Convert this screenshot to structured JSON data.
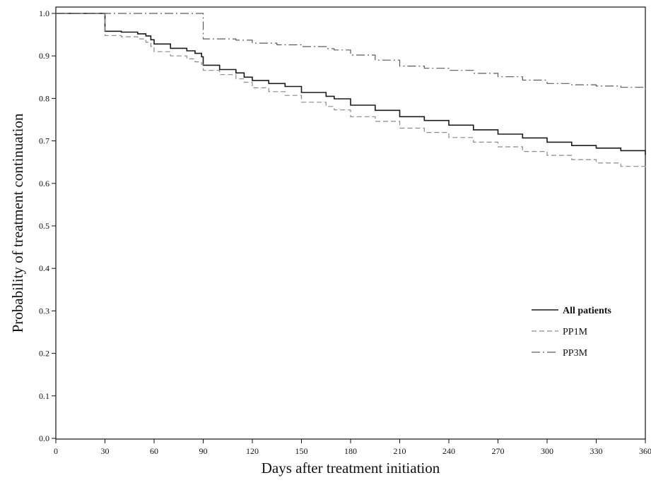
{
  "chart_data": {
    "type": "line",
    "step": true,
    "xlabel": "Days after treatment initiation",
    "ylabel": "Probability of treatment continuation",
    "xlim": [
      0,
      360
    ],
    "ylim": [
      0.0,
      1.0
    ],
    "xticks": [
      0,
      30,
      60,
      90,
      120,
      150,
      180,
      210,
      240,
      270,
      300,
      330,
      360
    ],
    "yticks": [
      0.0,
      0.1,
      0.2,
      0.3,
      0.4,
      0.5,
      0.6,
      0.7,
      0.8,
      0.9,
      1.0
    ],
    "ytick_labels": [
      "0.0",
      "0.1",
      "0.2",
      "0.3",
      "0.4",
      "0.5",
      "0.6",
      "0.7",
      "0.8",
      "0.9",
      "1.0"
    ],
    "grid": false,
    "legend_position": "bottom-right",
    "series": [
      {
        "name": "All patients",
        "style": "solid",
        "color": "#1a1a1a",
        "points": [
          [
            0,
            1.0
          ],
          [
            29,
            1.0
          ],
          [
            30,
            0.958
          ],
          [
            40,
            0.956
          ],
          [
            50,
            0.952
          ],
          [
            55,
            0.947
          ],
          [
            58,
            0.938
          ],
          [
            60,
            0.928
          ],
          [
            70,
            0.918
          ],
          [
            80,
            0.912
          ],
          [
            85,
            0.906
          ],
          [
            89,
            0.898
          ],
          [
            90,
            0.878
          ],
          [
            100,
            0.868
          ],
          [
            110,
            0.86
          ],
          [
            115,
            0.85
          ],
          [
            120,
            0.842
          ],
          [
            130,
            0.835
          ],
          [
            140,
            0.828
          ],
          [
            150,
            0.814
          ],
          [
            165,
            0.805
          ],
          [
            170,
            0.799
          ],
          [
            180,
            0.784
          ],
          [
            195,
            0.772
          ],
          [
            210,
            0.757
          ],
          [
            225,
            0.748
          ],
          [
            240,
            0.737
          ],
          [
            255,
            0.726
          ],
          [
            270,
            0.716
          ],
          [
            285,
            0.707
          ],
          [
            300,
            0.697
          ],
          [
            315,
            0.689
          ],
          [
            330,
            0.683
          ],
          [
            345,
            0.677
          ],
          [
            360,
            0.667
          ]
        ]
      },
      {
        "name": "PP1M",
        "style": "dashed",
        "color": "#8a8a8a",
        "points": [
          [
            0,
            1.0
          ],
          [
            29,
            1.0
          ],
          [
            30,
            0.948
          ],
          [
            40,
            0.945
          ],
          [
            50,
            0.94
          ],
          [
            55,
            0.932
          ],
          [
            58,
            0.922
          ],
          [
            60,
            0.91
          ],
          [
            70,
            0.9
          ],
          [
            80,
            0.893
          ],
          [
            85,
            0.886
          ],
          [
            89,
            0.88
          ],
          [
            90,
            0.866
          ],
          [
            100,
            0.856
          ],
          [
            110,
            0.846
          ],
          [
            115,
            0.838
          ],
          [
            120,
            0.825
          ],
          [
            130,
            0.816
          ],
          [
            140,
            0.807
          ],
          [
            150,
            0.791
          ],
          [
            165,
            0.781
          ],
          [
            170,
            0.773
          ],
          [
            180,
            0.757
          ],
          [
            195,
            0.746
          ],
          [
            210,
            0.73
          ],
          [
            225,
            0.72
          ],
          [
            240,
            0.708
          ],
          [
            255,
            0.697
          ],
          [
            270,
            0.686
          ],
          [
            285,
            0.675
          ],
          [
            300,
            0.666
          ],
          [
            315,
            0.656
          ],
          [
            330,
            0.648
          ],
          [
            345,
            0.64
          ],
          [
            360,
            0.632
          ]
        ]
      },
      {
        "name": "PP3M",
        "style": "dashdot",
        "color": "#5a5a5a",
        "points": [
          [
            0,
            1.0
          ],
          [
            89,
            1.0
          ],
          [
            90,
            0.94
          ],
          [
            110,
            0.937
          ],
          [
            120,
            0.93
          ],
          [
            135,
            0.926
          ],
          [
            150,
            0.922
          ],
          [
            165,
            0.917
          ],
          [
            170,
            0.914
          ],
          [
            180,
            0.902
          ],
          [
            195,
            0.89
          ],
          [
            210,
            0.876
          ],
          [
            225,
            0.871
          ],
          [
            240,
            0.866
          ],
          [
            255,
            0.859
          ],
          [
            270,
            0.851
          ],
          [
            285,
            0.843
          ],
          [
            300,
            0.835
          ],
          [
            315,
            0.832
          ],
          [
            330,
            0.829
          ],
          [
            345,
            0.826
          ],
          [
            360,
            0.82
          ]
        ]
      }
    ]
  }
}
